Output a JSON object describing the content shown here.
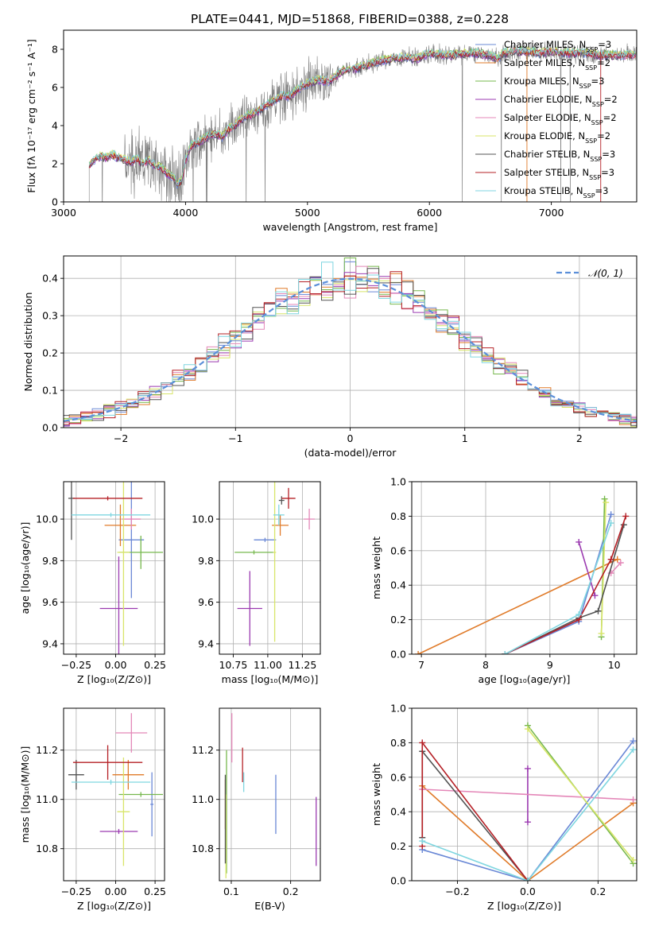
{
  "colors": [
    "#6a88d6",
    "#e07b2a",
    "#77b84e",
    "#9b3ab0",
    "#e487b8",
    "#d8e56a",
    "#535353",
    "#b52026",
    "#7fd6e0"
  ],
  "chart_data": [
    {
      "id": "spectrum",
      "type": "line",
      "title": "PLATE=0441, MJD=51868, FIBERID=0388, z=0.228",
      "xlabel": "wavelength [Angstrom, rest frame]",
      "ylabel": "Flux [fλ 10⁻¹⁷ erg cm⁻² s⁻¹ A⁻¹]",
      "xlim": [
        3000,
        7700
      ],
      "ylim": [
        0,
        9
      ],
      "xticks": [
        "3000",
        "4000",
        "5000",
        "6000",
        "7000"
      ],
      "yticks": [
        "0",
        "2",
        "4",
        "6",
        "8"
      ],
      "legend_position": "upper-right",
      "legend": [
        "Chabrier MILES, N_SSP=3",
        "Salpeter MILES, N_SSP=2",
        "Kroupa MILES, N_SSP=3",
        "Chabrier ELODIE, N_SSP=2",
        "Salpeter ELODIE, N_SSP=2",
        "Kroupa ELODIE, N_SSP=2",
        "Chabrier STELIB, N_SSP=3",
        "Salpeter STELIB, N_SSP=3",
        "Kroupa STELIB, N_SSP=3"
      ],
      "data_series": {
        "name": "data",
        "color": "#808080",
        "x_range": [
          3210,
          7700
        ]
      },
      "model_curve": {
        "x": [
          3210,
          3250,
          3300,
          3350,
          3400,
          3450,
          3500,
          3550,
          3600,
          3650,
          3700,
          3750,
          3800,
          3850,
          3900,
          3933,
          3968,
          4000,
          4050,
          4100,
          4150,
          4200,
          4250,
          4300,
          4350,
          4400,
          4450,
          4500,
          4550,
          4600,
          4650,
          4700,
          4750,
          4800,
          4861,
          4900,
          4950,
          5000,
          5050,
          5100,
          5175,
          5250,
          5300,
          5400,
          5500,
          5600,
          5700,
          5800,
          5893,
          6000,
          6100,
          6200,
          6300,
          6400,
          6500,
          6563,
          6600,
          6700,
          6800,
          6900,
          7000,
          7100,
          7200,
          7300,
          7400,
          7500,
          7600,
          7700
        ],
        "y": [
          1.9,
          2.2,
          2.4,
          2.3,
          2.5,
          2.3,
          2.2,
          2.1,
          2.3,
          2.0,
          2.2,
          1.9,
          1.8,
          1.5,
          1.3,
          0.9,
          1.1,
          2.2,
          3.0,
          3.1,
          3.3,
          3.5,
          3.6,
          3.4,
          3.8,
          4.0,
          4.3,
          4.5,
          4.6,
          4.8,
          5.0,
          5.2,
          5.4,
          5.6,
          5.5,
          5.8,
          6.0,
          6.2,
          6.3,
          6.4,
          6.3,
          6.7,
          6.9,
          7.0,
          7.2,
          7.4,
          7.5,
          7.6,
          7.5,
          7.8,
          7.7,
          7.7,
          7.8,
          7.8,
          7.7,
          7.5,
          7.8,
          7.9,
          7.9,
          7.8,
          7.9,
          7.8,
          7.8,
          7.8,
          7.7,
          7.7,
          7.7,
          7.7
        ]
      }
    },
    {
      "id": "residuals",
      "type": "histogram",
      "xlabel": "(data-model)/error",
      "ylabel": "Normed distribution",
      "xlim": [
        -2.5,
        2.5
      ],
      "ylim": [
        0,
        0.46
      ],
      "xticks": [
        "−2",
        "−1",
        "0",
        "1",
        "2"
      ],
      "yticks": [
        "0.0",
        "0.1",
        "0.2",
        "0.3",
        "0.4"
      ],
      "legend": [
        "𝒩(0, 1)"
      ],
      "legend_position": "upper-right",
      "bin_width": 0.1,
      "gaussian": {
        "mean": 0,
        "sigma": 1,
        "color": "#5b8fd9",
        "style": "dashed"
      }
    },
    {
      "id": "age-vs-Z",
      "type": "scatter",
      "xlabel": "Z [log₁₀(Z/Z⊙)]",
      "ylabel": "age  [log₁₀(age/yr)]",
      "xlim": [
        -0.33,
        0.31
      ],
      "ylim": [
        9.35,
        10.18
      ],
      "xticks": [
        "−0.25",
        "0.00",
        "0.25"
      ],
      "yticks": [
        "9.4",
        "9.6",
        "9.8",
        "10.0"
      ],
      "points": [
        {
          "x": 0.1,
          "y": 9.9,
          "xerr": 0.08,
          "yerr": 0.28
        },
        {
          "x": 0.03,
          "y": 9.97,
          "xerr": 0.1,
          "yerr": 0.1
        },
        {
          "x": 0.16,
          "y": 9.84,
          "xerr": 0.14,
          "yerr": 0.08
        },
        {
          "x": 0.02,
          "y": 9.57,
          "xerr": 0.12,
          "yerr": 0.25
        },
        {
          "x": 0.1,
          "y": 10.0,
          "xerr": 0.06,
          "yerr": 0.05
        },
        {
          "x": 0.05,
          "y": 9.84,
          "xerr": 0.04,
          "yerr": 0.45
        },
        {
          "x": -0.28,
          "y": 10.1,
          "xerr": 0.02,
          "yerr": 0.2
        },
        {
          "x": -0.05,
          "y": 10.1,
          "xerr": 0.22,
          "yerr": 0.01
        },
        {
          "x": -0.03,
          "y": 10.02,
          "xerr": 0.25,
          "yerr": 0.01
        }
      ]
    },
    {
      "id": "age-vs-mass",
      "type": "scatter",
      "xlabel": "mass [log₁₀(M/M⊙)]",
      "ylabel": "",
      "xlim": [
        10.65,
        11.38
      ],
      "ylim": [
        9.35,
        10.18
      ],
      "xticks": [
        "10.75",
        "11.00",
        "11.25"
      ],
      "yticks": [
        "9.4",
        "9.6",
        "9.8",
        "10.0"
      ],
      "points": [
        {
          "x": 10.98,
          "y": 9.9,
          "xerr": 0.08,
          "yerr": 0.01
        },
        {
          "x": 11.09,
          "y": 9.97,
          "xerr": 0.06,
          "yerr": 0.05
        },
        {
          "x": 10.9,
          "y": 9.84,
          "xerr": 0.14,
          "yerr": 0.01
        },
        {
          "x": 10.87,
          "y": 9.57,
          "xerr": 0.09,
          "yerr": 0.18
        },
        {
          "x": 11.3,
          "y": 10.0,
          "xerr": 0.04,
          "yerr": 0.05
        },
        {
          "x": 11.05,
          "y": 9.84,
          "xerr": 0.01,
          "yerr": 0.43
        },
        {
          "x": 11.1,
          "y": 10.09,
          "xerr": 0.02,
          "yerr": 0.02
        },
        {
          "x": 11.15,
          "y": 10.1,
          "xerr": 0.05,
          "yerr": 0.05
        },
        {
          "x": 11.08,
          "y": 10.02,
          "xerr": 0.04,
          "yerr": 0.05
        }
      ]
    },
    {
      "id": "weight-vs-age",
      "type": "line",
      "xlabel": "age  [log₁₀(age/yr)]",
      "ylabel": "mass weight",
      "xlim": [
        6.85,
        10.35
      ],
      "ylim": [
        0,
        1
      ],
      "xticks": [
        "7",
        "8",
        "9",
        "10"
      ],
      "yticks": [
        "0.0",
        "0.2",
        "0.4",
        "0.6",
        "0.8",
        "1.0"
      ],
      "series": [
        {
          "x": [
            8.3,
            9.45,
            9.95
          ],
          "y": [
            0.0,
            0.19,
            0.81
          ]
        },
        {
          "x": [
            6.95,
            10.05
          ],
          "y": [
            0.0,
            0.55
          ]
        },
        {
          "x": [
            9.8,
            9.85
          ],
          "y": [
            0.1,
            0.9
          ]
        },
        {
          "x": [
            9.45,
            9.7
          ],
          "y": [
            0.65,
            0.34
          ]
        },
        {
          "x": [
            9.95,
            10.1
          ],
          "y": [
            0.47,
            0.53
          ]
        },
        {
          "x": [
            9.8,
            9.87
          ],
          "y": [
            0.12,
            0.88
          ]
        },
        {
          "x": [
            8.3,
            9.45,
            9.75,
            10.15
          ],
          "y": [
            0.0,
            0.21,
            0.25,
            0.75
          ]
        },
        {
          "x": [
            8.3,
            9.45,
            9.95,
            10.18
          ],
          "y": [
            0.0,
            0.2,
            0.55,
            0.8
          ]
        },
        {
          "x": [
            8.3,
            9.45,
            9.95
          ],
          "y": [
            0.0,
            0.23,
            0.76
          ]
        }
      ]
    },
    {
      "id": "mass-vs-Z",
      "type": "scatter",
      "xlabel": "Z [log₁₀(Z/Z⊙)]",
      "ylabel": "mass [log₁₀(M/M⊙)]",
      "xlim": [
        -0.33,
        0.31
      ],
      "ylim": [
        10.67,
        11.37
      ],
      "xticks": [
        "−0.25",
        "0.00",
        "0.25"
      ],
      "yticks": [
        "10.8",
        "11.0",
        "11.2"
      ],
      "points": [
        {
          "x": 0.23,
          "y": 10.98,
          "xerr": 0.01,
          "yerr": 0.13
        },
        {
          "x": 0.08,
          "y": 11.1,
          "xerr": 0.1,
          "yerr": 0.06
        },
        {
          "x": 0.16,
          "y": 11.02,
          "xerr": 0.14,
          "yerr": 0.01
        },
        {
          "x": 0.02,
          "y": 10.87,
          "xerr": 0.12,
          "yerr": 0.01
        },
        {
          "x": 0.1,
          "y": 11.27,
          "xerr": 0.1,
          "yerr": 0.08
        },
        {
          "x": 0.05,
          "y": 10.95,
          "xerr": 0.04,
          "yerr": 0.22
        },
        {
          "x": -0.25,
          "y": 11.1,
          "xerr": 0.05,
          "yerr": 0.06
        },
        {
          "x": -0.05,
          "y": 11.15,
          "xerr": 0.22,
          "yerr": 0.07
        },
        {
          "x": -0.03,
          "y": 11.07,
          "xerr": 0.25,
          "yerr": 0.01
        }
      ]
    },
    {
      "id": "mass-vs-ebv",
      "type": "scatter",
      "xlabel": "E(B-V)",
      "ylabel": "",
      "xlim": [
        0.08,
        0.25
      ],
      "ylim": [
        10.67,
        11.37
      ],
      "xticks": [
        "0.1",
        "0.2"
      ],
      "yticks": [
        "10.8",
        "11.0",
        "11.2"
      ],
      "points": [
        {
          "x": 0.175,
          "y": 10.98,
          "xerr": 0,
          "yerr": 0.12
        },
        {
          "x": 0.09,
          "y": 10.98,
          "xerr": 0,
          "yerr": 0.1
        },
        {
          "x": 0.092,
          "y": 10.95,
          "xerr": 0,
          "yerr": 0.25
        },
        {
          "x": 0.243,
          "y": 10.87,
          "xerr": 0,
          "yerr": 0.14
        },
        {
          "x": 0.101,
          "y": 11.25,
          "xerr": 0,
          "yerr": 0.1
        },
        {
          "x": 0.091,
          "y": 10.85,
          "xerr": 0,
          "yerr": 0.17
        },
        {
          "x": 0.09,
          "y": 10.92,
          "xerr": 0,
          "yerr": 0.18
        },
        {
          "x": 0.119,
          "y": 11.14,
          "xerr": 0,
          "yerr": 0.07
        },
        {
          "x": 0.121,
          "y": 11.07,
          "xerr": 0,
          "yerr": 0.04
        }
      ]
    },
    {
      "id": "weight-vs-Z",
      "type": "line",
      "xlabel": "Z [log₁₀(Z/Z⊙)]",
      "ylabel": "mass weight",
      "xlim": [
        -0.33,
        0.31
      ],
      "ylim": [
        0,
        1
      ],
      "xticks": [
        "−0.2",
        "0.0",
        "0.2"
      ],
      "yticks": [
        "0.0",
        "0.2",
        "0.4",
        "0.6",
        "0.8",
        "1.0"
      ],
      "series": [
        {
          "x": [
            -0.3,
            0.0,
            0.3
          ],
          "y": [
            0.18,
            0.0,
            0.81
          ]
        },
        {
          "x": [
            -0.3,
            0.0,
            0.3
          ],
          "y": [
            0.55,
            0.0,
            0.45
          ]
        },
        {
          "x": [
            0.0,
            0.3
          ],
          "y": [
            0.9,
            0.1
          ]
        },
        {
          "x": [
            0.0,
            0.0
          ],
          "y": [
            0.34,
            0.65
          ]
        },
        {
          "x": [
            -0.3,
            0.3
          ],
          "y": [
            0.53,
            0.47
          ]
        },
        {
          "x": [
            0.0,
            0.3
          ],
          "y": [
            0.88,
            0.12
          ]
        },
        {
          "x": [
            -0.3,
            -0.3,
            0.0
          ],
          "y": [
            0.25,
            0.75,
            0.0
          ]
        },
        {
          "x": [
            -0.3,
            -0.3,
            0.0
          ],
          "y": [
            0.2,
            0.8,
            0.0
          ]
        },
        {
          "x": [
            -0.3,
            0.0,
            0.3
          ],
          "y": [
            0.23,
            0.0,
            0.76
          ]
        }
      ]
    }
  ]
}
